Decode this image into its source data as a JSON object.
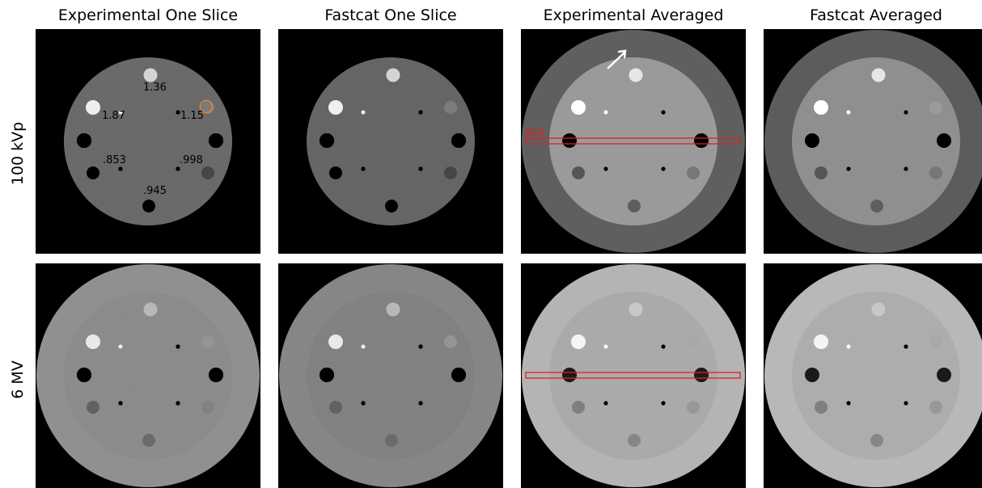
{
  "columns": [
    "Experimental One Slice",
    "Fastcat One Slice",
    "Experimental Averaged",
    "Fastcat Averaged"
  ],
  "rows": [
    "100 kVp",
    "6 MV"
  ],
  "density_labels": [
    "1.36",
    "1.87",
    "1.15",
    ".853",
    ".998",
    ".945"
  ],
  "roi_label": "ROI",
  "colors": {
    "roi": "#e02020",
    "marker_circle": "#e08a2a",
    "arrow": "#ffffff"
  }
}
